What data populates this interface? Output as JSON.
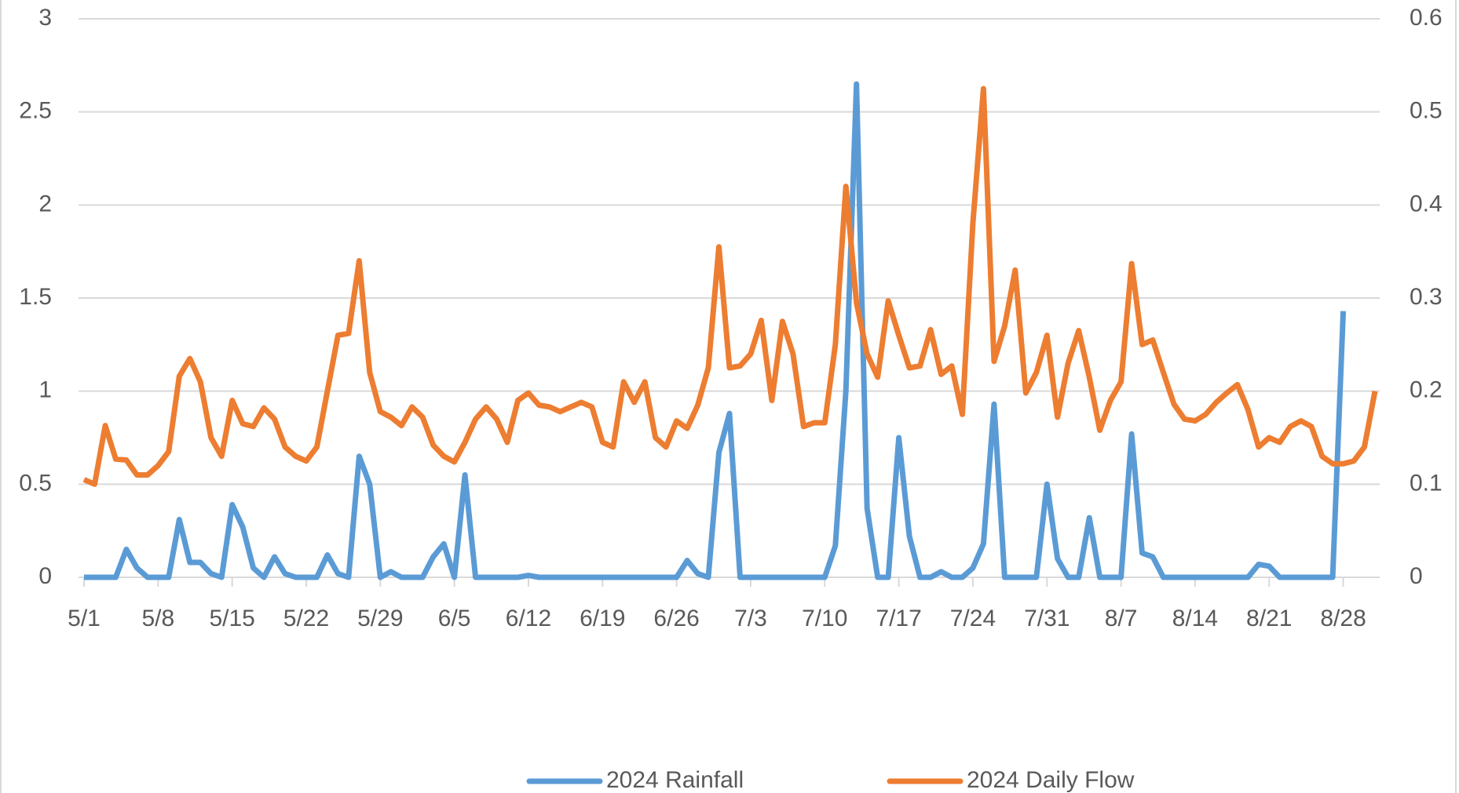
{
  "chart_data": {
    "type": "line",
    "categories": [
      "5/1",
      null,
      null,
      null,
      null,
      null,
      null,
      "5/8",
      null,
      null,
      null,
      null,
      null,
      null,
      "5/15",
      null,
      null,
      null,
      null,
      null,
      null,
      "5/22",
      null,
      null,
      null,
      null,
      null,
      null,
      "5/29",
      null,
      null,
      null,
      null,
      null,
      null,
      "6/5",
      null,
      null,
      null,
      null,
      null,
      null,
      "6/12",
      null,
      null,
      null,
      null,
      null,
      null,
      "6/19",
      null,
      null,
      null,
      null,
      null,
      null,
      "6/26",
      null,
      null,
      null,
      null,
      null,
      null,
      "7/3",
      null,
      null,
      null,
      null,
      null,
      null,
      "7/10",
      null,
      null,
      null,
      null,
      null,
      null,
      "7/17",
      null,
      null,
      null,
      null,
      null,
      null,
      "7/24",
      null,
      null,
      null,
      null,
      null,
      null,
      "7/31",
      null,
      null,
      null,
      null,
      null,
      null,
      "8/7",
      null,
      null,
      null,
      null,
      null,
      null,
      "8/14",
      null,
      null,
      null,
      null,
      null,
      null,
      "8/21",
      null,
      null,
      null,
      null,
      null,
      null,
      "8/28",
      null,
      null,
      null
    ],
    "series": [
      {
        "name": "2024 Rainfall",
        "color": "#5b9bd5",
        "axis": "y",
        "values": [
          0,
          0,
          0,
          0,
          0.15,
          0.05,
          0,
          0,
          0,
          0.31,
          0.08,
          0.08,
          0.02,
          0,
          0.39,
          0.27,
          0.05,
          0,
          0.11,
          0.02,
          0,
          0,
          0,
          0.12,
          0.02,
          0,
          0.65,
          0.5,
          0,
          0.03,
          0,
          0,
          0,
          0.11,
          0.18,
          0,
          0.55,
          0,
          0,
          0,
          0,
          0,
          0.01,
          0,
          0,
          0,
          0,
          0,
          0,
          0,
          0,
          0,
          0,
          0,
          0,
          0,
          0,
          0.09,
          0.02,
          0,
          0.67,
          0.88,
          0,
          0,
          0,
          0,
          0,
          0,
          0,
          0,
          0,
          0.17,
          1.0,
          2.65,
          0.37,
          0,
          0,
          0.75,
          0.22,
          0,
          0,
          0.03,
          0,
          0,
          0.05,
          0.18,
          0.93,
          0,
          0,
          0,
          0,
          0.5,
          0.1,
          0,
          0,
          0.32,
          0,
          0,
          0,
          0.77,
          0.13,
          0.11,
          0,
          0,
          0,
          0,
          0,
          0,
          0,
          0,
          0,
          0.07,
          0.06,
          0,
          0,
          0,
          0,
          0,
          0,
          1.43,
          null,
          null,
          null
        ]
      },
      {
        "name": "2024 Daily Flow",
        "color": "#ed7d31",
        "axis": "y2",
        "values": [
          0.105,
          0.1,
          0.163,
          0.127,
          0.126,
          0.11,
          0.11,
          0.12,
          0.135,
          0.216,
          0.235,
          0.21,
          0.15,
          0.13,
          0.19,
          0.165,
          0.162,
          0.182,
          0.17,
          0.14,
          0.13,
          0.125,
          0.14,
          0.2,
          0.26,
          0.262,
          0.34,
          0.22,
          0.178,
          0.172,
          0.163,
          0.183,
          0.172,
          0.142,
          0.13,
          0.124,
          0.145,
          0.17,
          0.183,
          0.17,
          0.145,
          0.19,
          0.198,
          0.185,
          0.183,
          0.178,
          0.183,
          0.188,
          0.183,
          0.145,
          0.14,
          0.21,
          0.188,
          0.21,
          0.15,
          0.14,
          0.168,
          0.16,
          0.185,
          0.225,
          0.355,
          0.225,
          0.227,
          0.24,
          0.276,
          0.19,
          0.275,
          0.24,
          0.162,
          0.166,
          0.166,
          0.25,
          0.42,
          0.295,
          0.24,
          0.215,
          0.297,
          0.26,
          0.225,
          0.227,
          0.266,
          0.218,
          0.227,
          0.175,
          0.38,
          0.525,
          0.232,
          0.27,
          0.33,
          0.198,
          0.22,
          0.26,
          0.172,
          0.23,
          0.265,
          0.215,
          0.158,
          0.19,
          0.21,
          0.337,
          0.25,
          0.255,
          0.22,
          0.186,
          0.17,
          0.168,
          0.175,
          0.188,
          0.198,
          0.207,
          0.18,
          0.14,
          0.15,
          0.145,
          0.162,
          0.168,
          0.162,
          0.13,
          0.122,
          0.122,
          0.125,
          0.14,
          0.2
        ]
      }
    ],
    "ylim": [
      0,
      3
    ],
    "yticks": [
      0,
      0.5,
      1,
      1.5,
      2,
      2.5,
      3
    ],
    "y2lim": [
      0,
      0.6
    ],
    "y2ticks": [
      0,
      0.1,
      0.2,
      0.3,
      0.4,
      0.5,
      0.6
    ],
    "grid": true,
    "legend": "bottom"
  }
}
